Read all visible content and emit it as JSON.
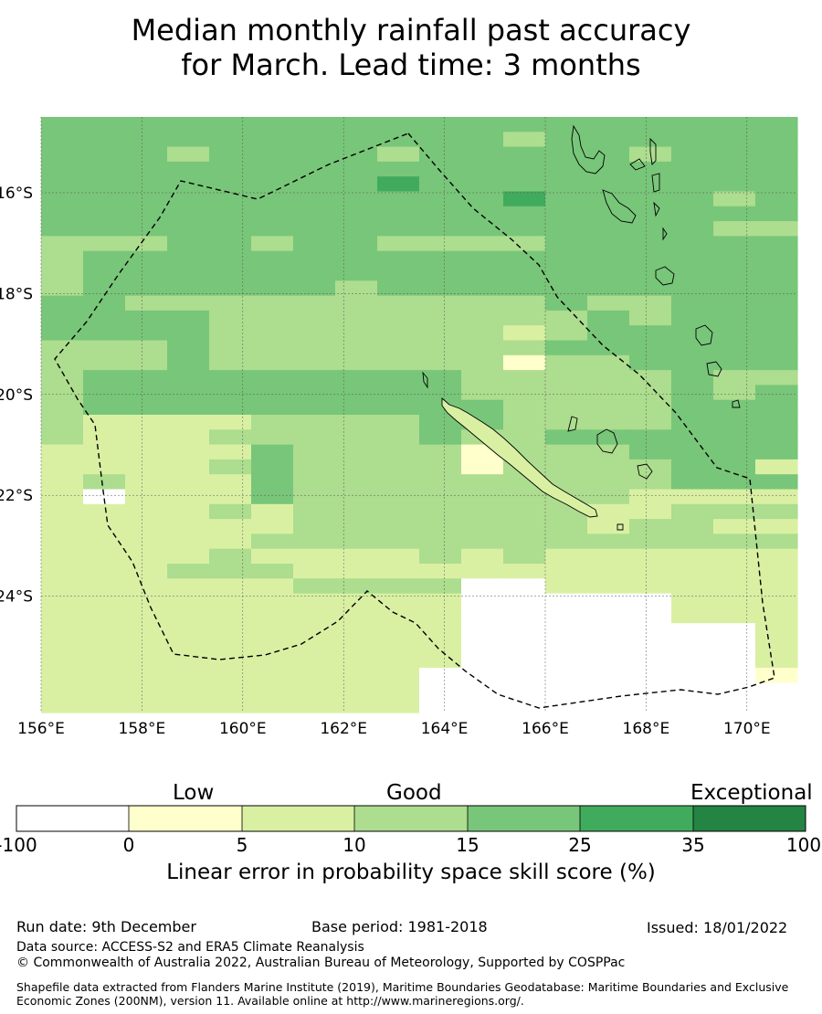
{
  "title_line1": "Median monthly rainfall past accuracy",
  "title_line2": "for March. Lead time: 3 months",
  "map": {
    "lon_labels": [
      "156°E",
      "158°E",
      "160°E",
      "162°E",
      "164°E",
      "166°E",
      "168°E",
      "170°E"
    ],
    "lat_labels": [
      "16°S",
      "18°S",
      "20°S",
      "22°S",
      "24°S"
    ],
    "lon_values": [
      156,
      158,
      160,
      162,
      164,
      166,
      168,
      170
    ],
    "lat_values": [
      16,
      18,
      20,
      22,
      24
    ]
  },
  "legend": {
    "categories": [
      "Low",
      "Good",
      "Exceptional"
    ],
    "ticks": [
      "-100",
      "0",
      "5",
      "10",
      "15",
      "25",
      "35",
      "100"
    ],
    "colors": [
      "#ffffff",
      "#ffffcc",
      "#d9f0a3",
      "#addd8e",
      "#78c679",
      "#41ab5d",
      "#238443"
    ],
    "label": "Linear error in probability space skill score (%)"
  },
  "footer": {
    "run_date": "Run date: 9th December",
    "base_period": "Base period: 1981-2018",
    "issued": "Issued: 18/01/2022",
    "data_source": "Data source: ACCESS-S2 and ERA5 Climate Reanalysis",
    "copyright": "© Commonwealth of Australia 2022, Australian Bureau of Meteorology, Supported by COSPPac",
    "shapefile": "Shapefile data extracted from Flanders Marine Institute (2019), Maritime Boundaries Geodatabase: Maritime Boundaries and Exclusive Economic Zones (200NM), version 11. Available online at http://www.marineregions.org/."
  },
  "grid_classes": [
    "444444444444444444",
    "444444444443444444",
    "444344443444443444",
    "444444444444444444",
    "444444445444444444",
    "444444444445444434",
    "444444444444444444",
    "444444444444444433",
    "333443443333444444",
    "344444444444444444",
    "344444444444444444",
    "344444434444444444",
    "443333333333433444",
    "444433333333343444",
    "444433333332344444",
    "333433333333444444",
    "333433333331334444",
    "344444444433333433",
    "344444444433333434",
    "344444444443333444",
    "322223333443333444",
    "322233333433444444",
    "222224333313334444",
    "222234333313333442",
    "232224333333333444",
    "202224333333332222",
    "222232333333322333",
    "222222333333323322",
    "222223333333333333",
    "222232222323222222",
    "222333222222222222",
    "222222333300222222",
    "222222222200000222",
    "222222222200000222",
    "222222222200000002",
    "222222222200000002",
    "222222222200000002",
    "222222222000000001",
    "222222222000000000",
    "222222222000000000"
  ]
}
